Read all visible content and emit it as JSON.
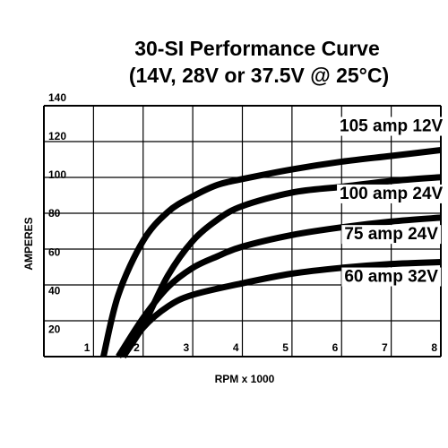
{
  "chart_data": {
    "type": "line",
    "title": "30-SI Performance Curve",
    "subtitle": "(14V, 28V or 37.5V @ 25°C)",
    "xlabel": "RPM x 1000",
    "ylabel": "AMPERES",
    "xlim": [
      1,
      8
    ],
    "ylim": [
      10,
      140
    ],
    "x_ticks": [
      "1",
      "2",
      "3",
      "4",
      "5",
      "6",
      "7",
      "8"
    ],
    "y_ticks": [
      "20",
      "40",
      "60",
      "80",
      "100",
      "120",
      "140"
    ],
    "grid": true,
    "series": [
      {
        "name": "105 amp 12V",
        "x": [
          1.2,
          1.5,
          2.0,
          2.5,
          3.0,
          3.5,
          4.0,
          5.0,
          6.0,
          7.0,
          8.0
        ],
        "y": [
          10,
          42,
          70,
          85,
          93,
          99,
          102,
          107,
          111,
          114,
          117
        ]
      },
      {
        "name": "100 amp 24V",
        "x": [
          1.6,
          2.0,
          2.5,
          3.0,
          3.5,
          4.0,
          5.0,
          6.0,
          7.0,
          8.0
        ],
        "y": [
          10,
          26,
          52,
          70,
          81,
          88,
          95,
          98,
          101,
          103
        ]
      },
      {
        "name": "75 amp 24V",
        "x": [
          1.5,
          2.0,
          2.5,
          3.0,
          3.5,
          4.0,
          5.0,
          6.0,
          7.0,
          8.0
        ],
        "y": [
          10,
          30,
          46,
          56,
          62,
          67,
          73,
          77,
          80,
          82
        ]
      },
      {
        "name": "60 amp 32V",
        "x": [
          1.6,
          2.0,
          2.5,
          3.0,
          4.0,
          5.0,
          6.0,
          7.0,
          8.0
        ],
        "y": [
          10,
          25,
          36,
          42,
          48,
          53,
          56,
          58,
          59
        ]
      }
    ],
    "curve_labels": [
      {
        "text": "105 amp 12V",
        "x": 7.0,
        "y": 130
      },
      {
        "text": "100 amp 24V",
        "x": 7.0,
        "y": 95
      },
      {
        "text": "75 amp 24V",
        "x": 7.0,
        "y": 74
      },
      {
        "text": "60 amp 32V",
        "x": 7.0,
        "y": 52
      }
    ],
    "line_color": "#000000"
  }
}
